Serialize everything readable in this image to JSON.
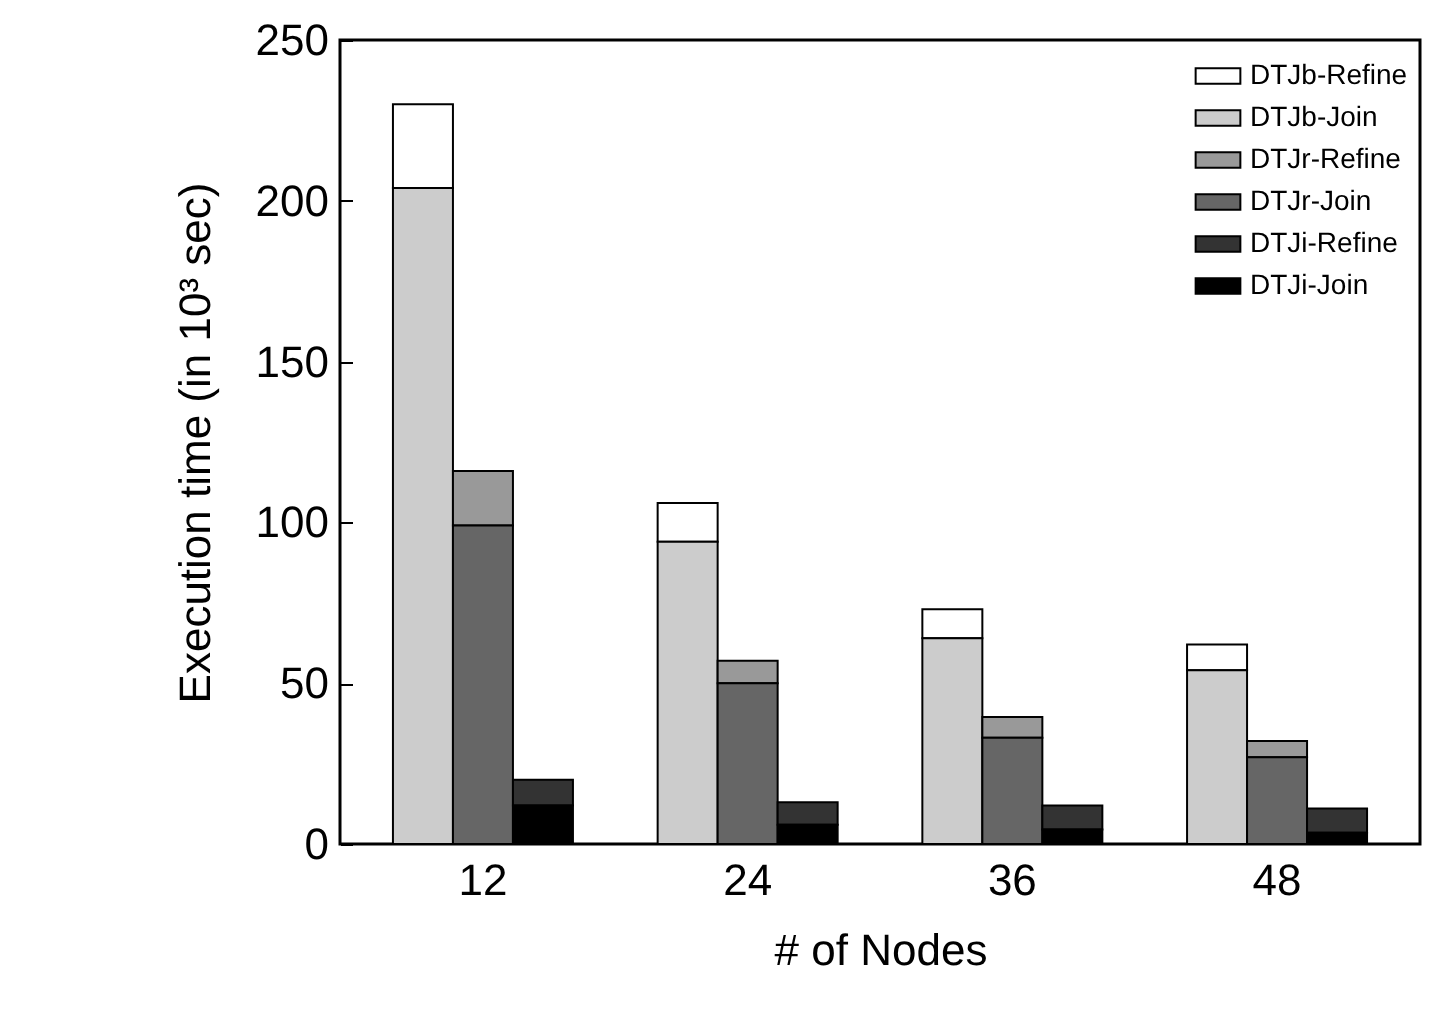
{
  "chart_data": {
    "type": "bar",
    "xlabel": "# of Nodes",
    "ylabel": "Execution time (in 10³ sec)",
    "categories": [
      "12",
      "24",
      "36",
      "48"
    ],
    "series": [
      {
        "name": "DTJb-Refine",
        "color": "#ffffff",
        "values": [
          26,
          12,
          9,
          8
        ],
        "base": [
          204,
          94,
          64,
          54
        ]
      },
      {
        "name": "DTJb-Join",
        "color": "#cccccc",
        "values": [
          204,
          94,
          64,
          54
        ]
      },
      {
        "name": "DTJr-Refine",
        "color": "#999999",
        "values": [
          17,
          7,
          6.5,
          5
        ],
        "base": [
          99,
          50,
          33,
          27
        ]
      },
      {
        "name": "DTJr-Join",
        "color": "#666666",
        "values": [
          99,
          50,
          33,
          27
        ]
      },
      {
        "name": "DTJi-Refine",
        "color": "#333333",
        "values": [
          8,
          7,
          7.5,
          7.5
        ],
        "base": [
          12,
          6,
          4.5,
          3.5
        ]
      },
      {
        "name": "DTJi-Join",
        "color": "#000000",
        "values": [
          12,
          6,
          4.5,
          3.5
        ]
      }
    ],
    "ylim": [
      0,
      250
    ],
    "yticks": [
      0,
      50,
      100,
      150,
      200,
      250
    ],
    "legend": "top right"
  }
}
